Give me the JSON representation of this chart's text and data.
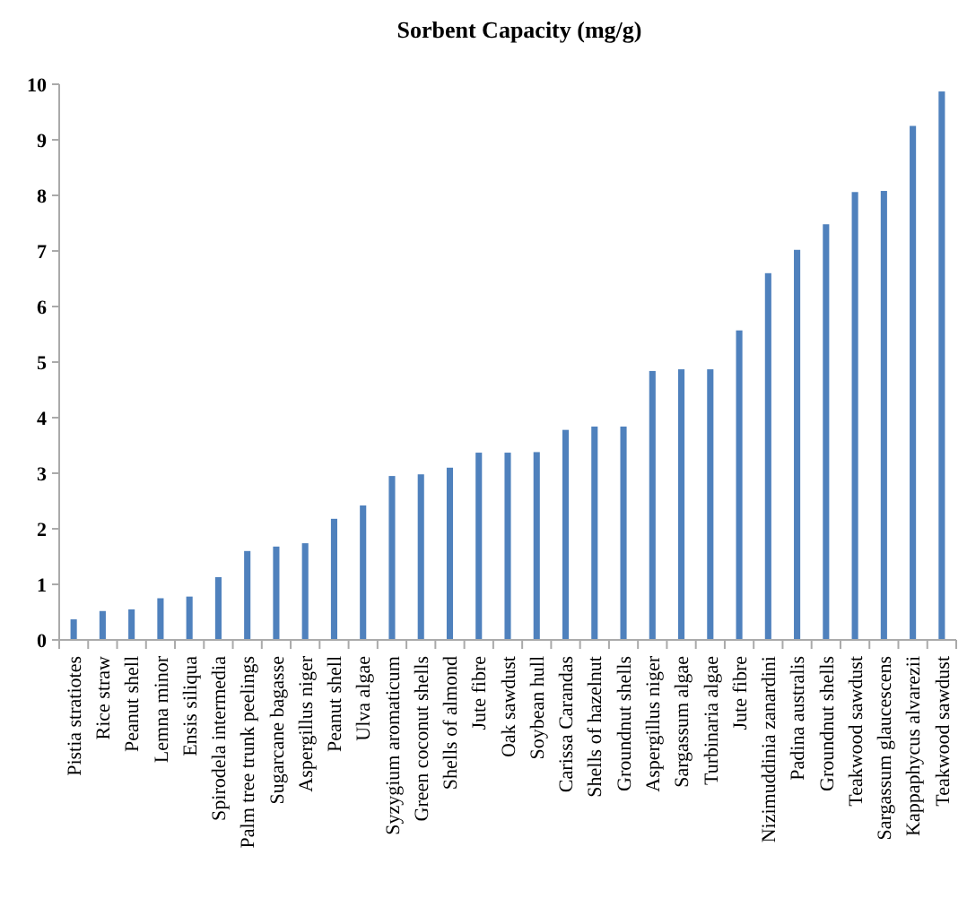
{
  "chart_data": {
    "type": "bar",
    "title": "Sorbent Capacity (mg/g)",
    "categories": [
      "Pistia stratiotes",
      "Rice straw",
      "Peanut shell",
      "Lemna minor",
      "Ensis siliqua",
      "Spirodela intermedia",
      "Palm tree trunk peelings",
      "Sugarcane bagasse",
      "Aspergillus niger",
      "Peanut shell",
      "Ulva algae",
      "Syzygium aromaticum",
      "Green coconut shells",
      "Shells of almond",
      "Jute fibre",
      "Oak sawdust",
      "Soybean hull",
      "Carissa Carandas",
      "Shells of hazelnut",
      "Groundnut shells",
      "Aspergillus niger",
      "Sargassum algae",
      "Turbinaria algae",
      "Jute fibre",
      "Nizimuddinia zanardini",
      "Padina australis",
      "Groundnut shells",
      "Teakwood sawdust",
      "Sargassum glaucescens",
      "Kappaphycus alvarezii",
      "Teakwood sawdust"
    ],
    "values": [
      0.37,
      0.52,
      0.55,
      0.75,
      0.78,
      1.13,
      1.6,
      1.68,
      1.74,
      2.18,
      2.42,
      2.95,
      2.98,
      3.1,
      3.37,
      3.37,
      3.38,
      3.78,
      3.84,
      3.84,
      4.84,
      4.87,
      4.87,
      5.57,
      6.6,
      7.02,
      7.48,
      8.06,
      8.08,
      9.25,
      9.87
    ],
    "color": "#4f81bd",
    "ylim": [
      0,
      10
    ],
    "yticks": [
      0,
      1,
      2,
      3,
      4,
      5,
      6,
      7,
      8,
      9,
      10
    ]
  }
}
